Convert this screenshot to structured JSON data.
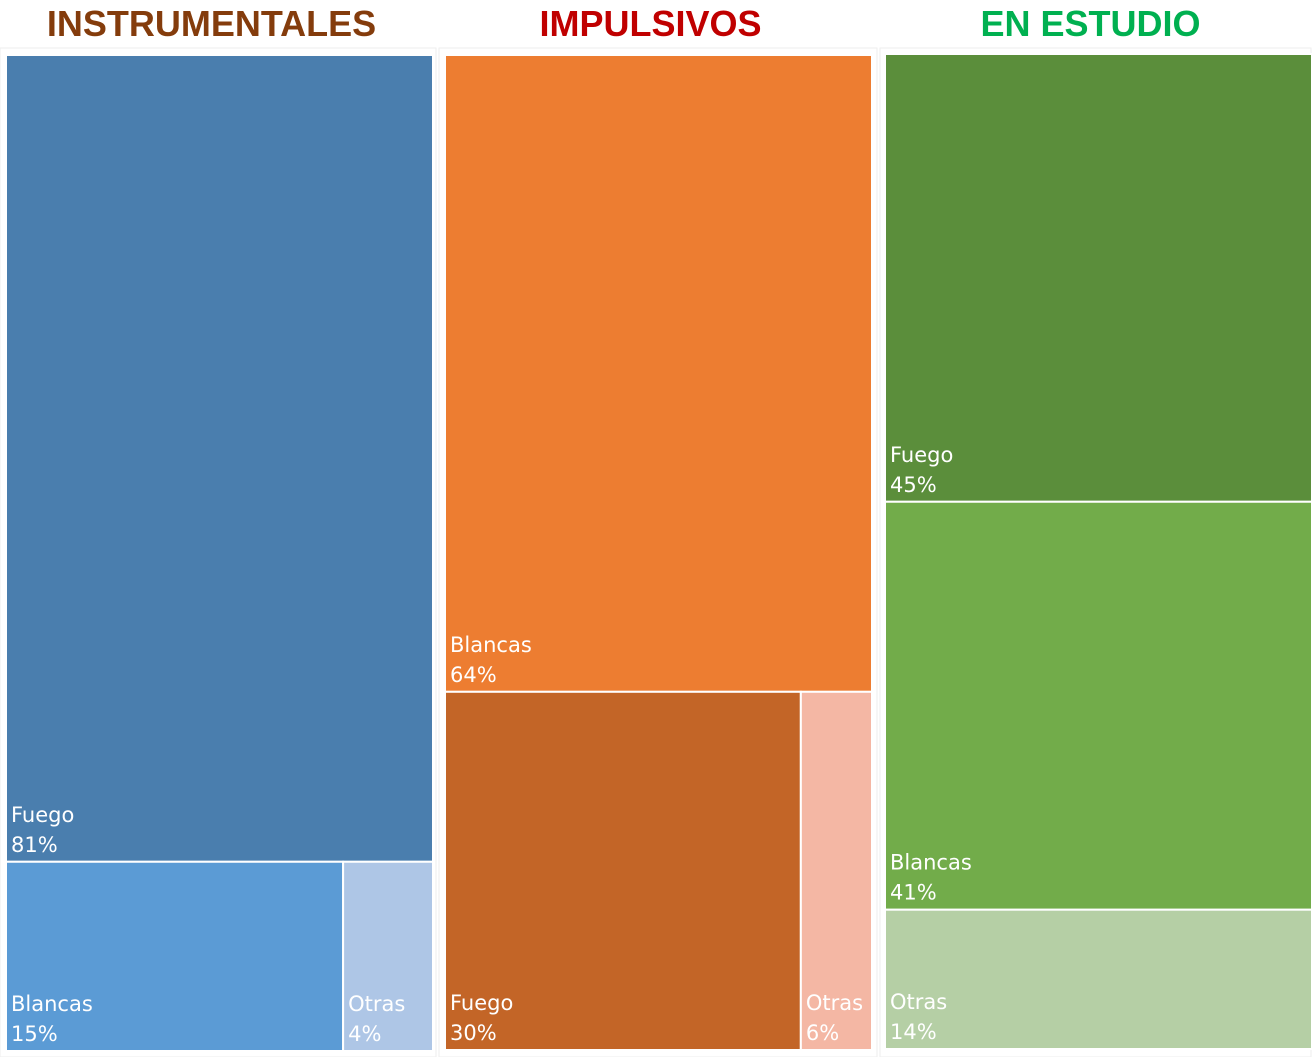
{
  "chart_data": [
    {
      "type": "treemap",
      "title": "INSTRUMENTALES",
      "title_color": "#843c0c",
      "categories": [
        "Fuego",
        "Blancas",
        "Otras"
      ],
      "values": [
        81,
        15,
        4
      ],
      "value_labels": [
        "81%",
        "15%",
        "4%"
      ],
      "colors": [
        "#4a7eae",
        "#5b9bd5",
        "#aec6e6"
      ]
    },
    {
      "type": "treemap",
      "title": "IMPULSIVOS",
      "title_color": "#c00000",
      "categories": [
        "Blancas",
        "Fuego",
        "Otras"
      ],
      "values": [
        64,
        30,
        6
      ],
      "value_labels": [
        "64%",
        "30%",
        "6%"
      ],
      "colors": [
        "#ed7d31",
        "#c36527",
        "#f4b7a4"
      ]
    },
    {
      "type": "treemap",
      "title": "EN ESTUDIO",
      "title_color": "#00b050",
      "categories": [
        "Fuego",
        "Blancas",
        "Otras"
      ],
      "values": [
        45,
        41,
        14
      ],
      "value_labels": [
        "45%",
        "41%",
        "14%"
      ],
      "colors": [
        "#5b8e3b",
        "#72ac4a",
        "#b5cfa5"
      ]
    }
  ]
}
